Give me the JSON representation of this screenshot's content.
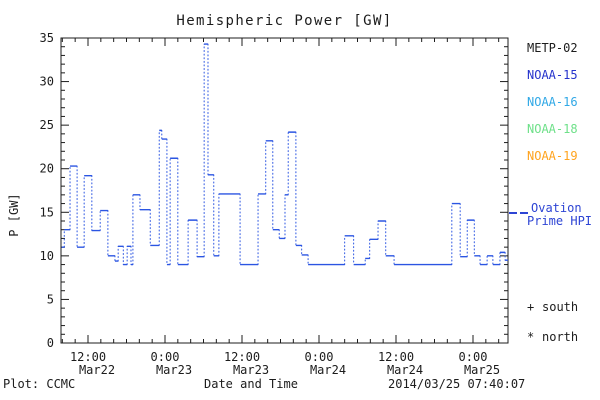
{
  "colors": {
    "background": "#ffffff",
    "ink": "#1c1c1c",
    "curve_blue": "#2b55e2"
  },
  "legend": {
    "satellites": [
      {
        "label": "METP-02",
        "color": "#1c1c1c"
      },
      {
        "label": "NOAA-15",
        "color": "#2633cc"
      },
      {
        "label": "NOAA-16",
        "color": "#30a8e6"
      },
      {
        "label": "NOAA-18",
        "color": "#6ee089"
      },
      {
        "label": "NOAA-19",
        "color": "#ffa31e"
      }
    ],
    "model": {
      "line1": "Ovation",
      "line2": "Prime HPI",
      "color": "#2d44d4"
    },
    "markers": [
      {
        "symbol": "+",
        "label": "south"
      },
      {
        "symbol": "*",
        "label": "north"
      }
    ]
  },
  "footer": {
    "left": "Plot: CCMC",
    "center": "Date and Time",
    "right": "2014/03/25 07:40:07"
  },
  "chart_data": {
    "type": "line",
    "style": "step-function, solid horizontal data bars joined by dotted vertical connectors",
    "title": "Hemispheric Power [GW]",
    "ylabel": "P [GW]",
    "xlabel": "Date and Time",
    "ylim": [
      0,
      35
    ],
    "y_major_ticks": [
      0,
      5,
      10,
      15,
      20,
      25,
      30,
      35
    ],
    "y_minor_step": 1,
    "x_axis_note": "hours since 2014-03-22 00:00 UT",
    "x_hours_range": [
      7.9,
      77.5
    ],
    "x_minor_step_hours": 2,
    "x_major_ticks": [
      {
        "h": 12,
        "time": "12:00",
        "date": "Mar22"
      },
      {
        "h": 24,
        "time": "0:00",
        "date": "Mar23"
      },
      {
        "h": 36,
        "time": "12:00",
        "date": "Mar23"
      },
      {
        "h": 48,
        "time": "0:00",
        "date": "Mar24"
      },
      {
        "h": 60,
        "time": "12:00",
        "date": "Mar24"
      },
      {
        "h": 72,
        "time": "0:00",
        "date": "Mar25"
      }
    ],
    "series": [
      {
        "name": "Ovation Prime HPI",
        "color": "#2b55e2",
        "units": "GW",
        "segments_format": [
          "hour_start",
          "hour_end",
          "power_GW"
        ],
        "segments": [
          [
            7.9,
            8.3,
            11.0
          ],
          [
            8.3,
            9.2,
            13.0
          ],
          [
            9.2,
            10.3,
            20.3
          ],
          [
            10.3,
            11.4,
            11.0
          ],
          [
            11.4,
            12.6,
            19.2
          ],
          [
            12.6,
            13.9,
            12.9
          ],
          [
            13.9,
            15.1,
            15.2
          ],
          [
            15.1,
            16.2,
            10.0
          ],
          [
            16.2,
            16.7,
            9.4
          ],
          [
            16.7,
            17.5,
            11.1
          ],
          [
            17.5,
            18.1,
            9.0
          ],
          [
            18.1,
            18.7,
            11.1
          ],
          [
            18.7,
            19.0,
            9.0
          ],
          [
            19.0,
            20.1,
            17.0
          ],
          [
            20.1,
            21.7,
            15.3
          ],
          [
            21.7,
            23.1,
            11.2
          ],
          [
            23.1,
            23.5,
            24.4
          ],
          [
            23.5,
            24.3,
            23.4
          ],
          [
            24.3,
            24.8,
            9.0
          ],
          [
            24.8,
            26.0,
            21.2
          ],
          [
            26.0,
            27.6,
            9.0
          ],
          [
            27.6,
            29.0,
            14.1
          ],
          [
            29.0,
            30.1,
            9.9
          ],
          [
            30.1,
            30.7,
            34.3
          ],
          [
            30.7,
            31.6,
            19.3
          ],
          [
            31.6,
            32.4,
            10.0
          ],
          [
            32.4,
            35.7,
            17.1
          ],
          [
            35.7,
            38.5,
            9.0
          ],
          [
            38.5,
            39.7,
            17.1
          ],
          [
            39.7,
            40.8,
            23.2
          ],
          [
            40.8,
            41.8,
            13.0
          ],
          [
            41.8,
            42.7,
            12.0
          ],
          [
            42.7,
            43.2,
            17.0
          ],
          [
            43.2,
            44.4,
            24.2
          ],
          [
            44.4,
            45.3,
            11.2
          ],
          [
            45.3,
            46.3,
            10.1
          ],
          [
            46.3,
            52.0,
            9.0
          ],
          [
            52.0,
            53.4,
            12.3
          ],
          [
            53.4,
            55.2,
            9.0
          ],
          [
            55.2,
            55.9,
            9.7
          ],
          [
            55.9,
            57.2,
            11.9
          ],
          [
            57.2,
            58.4,
            14.0
          ],
          [
            58.4,
            59.7,
            10.0
          ],
          [
            59.7,
            68.7,
            9.0
          ],
          [
            68.7,
            70.0,
            16.0
          ],
          [
            70.0,
            71.1,
            9.9
          ],
          [
            71.1,
            72.2,
            14.1
          ],
          [
            72.2,
            73.1,
            10.0
          ],
          [
            73.1,
            74.2,
            9.0
          ],
          [
            74.2,
            75.1,
            10.0
          ],
          [
            75.1,
            76.2,
            9.0
          ],
          [
            76.2,
            77.0,
            10.4
          ],
          [
            77.0,
            77.5,
            9.5
          ]
        ]
      }
    ]
  }
}
